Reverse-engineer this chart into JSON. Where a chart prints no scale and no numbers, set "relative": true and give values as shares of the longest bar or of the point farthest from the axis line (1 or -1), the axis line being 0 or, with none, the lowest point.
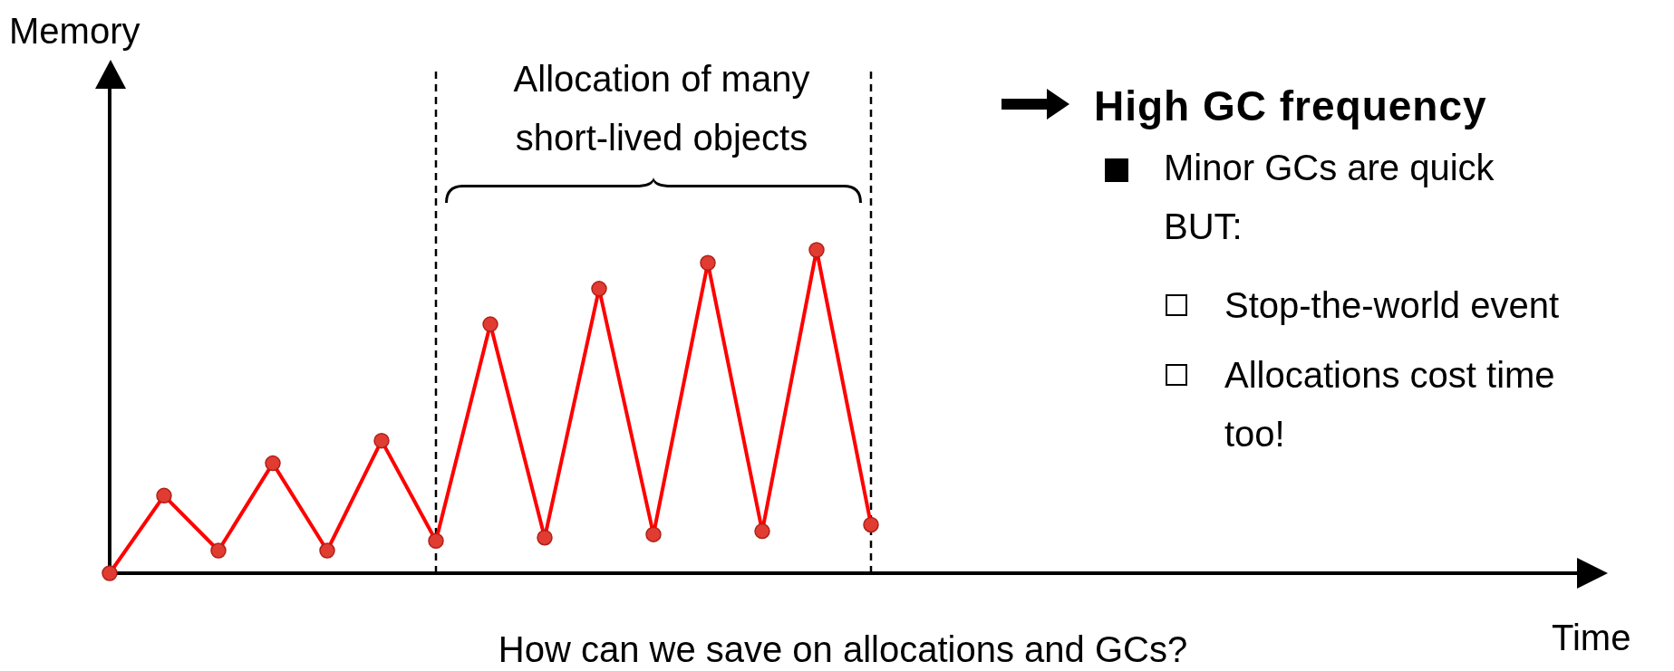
{
  "chart_data": {
    "type": "line",
    "relative": true,
    "categories": [
      null,
      null,
      null,
      null,
      null,
      null,
      null,
      null,
      null,
      null,
      null,
      null,
      null,
      null,
      null
    ],
    "series": [
      {
        "color": "#ff0000",
        "values": [
          0,
          0.24,
          0.07,
          0.34,
          0.07,
          0.41,
          0.1,
          0.77,
          0.11,
          0.88,
          0.12,
          0.96,
          0.13,
          1,
          0.15
        ]
      }
    ],
    "marker": "circle",
    "line_style": "solid",
    "grid": false,
    "legend": false,
    "annotations": [
      "Allocation of many short-lived objects",
      "High GC frequency",
      "Minor GCs are quick BUT:",
      "Stop-the-world event",
      "Allocations cost time too!",
      "How can we save on allocations and GCs?",
      "Memory",
      "Time"
    ]
  }
}
